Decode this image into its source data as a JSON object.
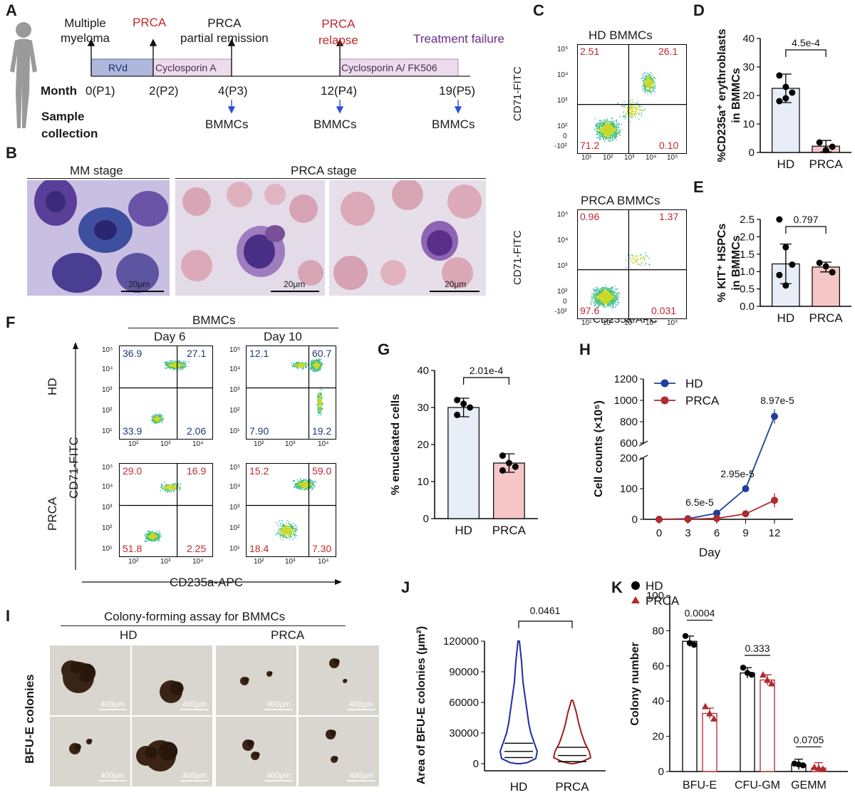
{
  "letters": {
    "A": "A",
    "B": "B",
    "C": "C",
    "D": "D",
    "E": "E",
    "F": "F",
    "G": "G",
    "H": "H",
    "I": "I",
    "J": "J",
    "K": "K"
  },
  "panelA": {
    "events": [
      "Multiple\nmyeloma",
      "PRCA",
      "PRCA\npartial remission",
      "PRCA\nrelapse",
      "Treatment failure"
    ],
    "bars": {
      "rvd": "RVd",
      "csa": "Cyclosporin A",
      "csa_fk": "Cyclosporin A/ FK506"
    },
    "month_label": "Month",
    "months": [
      "0(P1)",
      "2(P2)",
      "4(P3)",
      "12(P4)",
      "19(P5)"
    ],
    "sample_label": "Sample\ncollection",
    "bmmcs": "BMMCs"
  },
  "panelB": {
    "mm_stage": "MM stage",
    "prca_stage": "PRCA stage",
    "scale": "20μm"
  },
  "panelC": {
    "hd_title": "HD BMMCs",
    "prca_title": "PRCA BMMCs",
    "ylabel": "CD71-FITC",
    "xlabel": "CD235a-APC",
    "hd_quadrants": {
      "ul": "2.51",
      "ur": "26.1",
      "ll": "71.2",
      "lr": "0.10"
    },
    "prca_quadrants": {
      "ul": "0.96",
      "ur": "1.37",
      "ll": "97.6",
      "lr": "0.031"
    },
    "y_ticks": [
      "10⁵",
      "10⁴",
      "10³",
      "10²",
      "0",
      "-10²"
    ],
    "x_ticks": [
      "10¹",
      "10²",
      "10³",
      "10⁴",
      "10⁵"
    ]
  },
  "panelF": {
    "title": "BMMCs",
    "day6": "Day 6",
    "day10": "Day 10",
    "row_hd": "HD",
    "row_prca": "PRCA",
    "ylabel": "CD71-FITC",
    "xlabel": "CD235a-APC",
    "hd_d6": {
      "ul": "36.9",
      "ur": "27.1",
      "ll": "33.9",
      "lr": "2.06"
    },
    "hd_d10": {
      "ul": "12.1",
      "ur": "60.7",
      "ll": "7.90",
      "lr": "19.2"
    },
    "prca_d6": {
      "ul": "29.0",
      "ur": "16.9",
      "ll": "51.8",
      "lr": "2.25"
    },
    "prca_d10": {
      "ul": "15.2",
      "ur": "59.0",
      "ll": "18.4",
      "lr": "7.30"
    },
    "y_ticks": [
      "10⁵",
      "10⁴",
      "10³",
      "10²",
      "10¹"
    ],
    "x_ticks": [
      "10²",
      "10³",
      "10⁴"
    ]
  },
  "panelI": {
    "title": "Colony-forming assay for BMMCs",
    "hd": "HD",
    "prca": "PRCA",
    "side": "BFU-E colonies",
    "scale": "400μm"
  },
  "chart_data": [
    {
      "panel": "D",
      "type": "bar",
      "categories": [
        "HD",
        "PRCA"
      ],
      "values": [
        22.5,
        2.2
      ],
      "errors": [
        5,
        2
      ],
      "points": [
        [
          27,
          23,
          21,
          18,
          19
        ],
        [
          3.5,
          0.8,
          2.0
        ]
      ],
      "ylabel": "%CD235a⁺ erythroblasts\nin BMMCs",
      "ylim": [
        0,
        40
      ],
      "yticks": [
        "0",
        "10",
        "20",
        "30",
        "40"
      ],
      "pvalue": "4.5e-4",
      "colors": [
        "#e8eef8",
        "#f6c6c6"
      ]
    },
    {
      "panel": "E",
      "type": "bar",
      "categories": [
        "HD",
        "PRCA"
      ],
      "values": [
        1.22,
        1.13
      ],
      "errors": [
        0.57,
        0.14
      ],
      "points": [
        [
          2.5,
          1.7,
          1.2,
          0.9,
          0.6
        ],
        [
          1.25,
          1.15,
          0.98
        ]
      ],
      "ylabel": "% KIT⁺ HSPCs\nin BMMCs",
      "ylim": [
        0,
        2.5
      ],
      "yticks": [
        "0.0",
        "0.5",
        "1.0",
        "1.5",
        "2.0",
        "2.5"
      ],
      "pvalue": "0.797",
      "colors": [
        "#e8eef8",
        "#f6c6c6"
      ]
    },
    {
      "panel": "G",
      "type": "bar",
      "categories": [
        "HD",
        "PRCA"
      ],
      "values": [
        30,
        15
      ],
      "errors": [
        2.5,
        2.5
      ],
      "points": [
        [
          32,
          31,
          30,
          28
        ],
        [
          17,
          15,
          14,
          13
        ]
      ],
      "ylabel": "% enucleated cells",
      "ylim": [
        0,
        40
      ],
      "yticks": [
        "0",
        "10",
        "20",
        "30",
        "40"
      ],
      "pvalue": "2.01e-4",
      "colors": [
        "#e8eef8",
        "#f6c6c6"
      ]
    },
    {
      "panel": "H",
      "type": "line",
      "x": [
        0,
        3,
        6,
        9,
        12
      ],
      "series": [
        {
          "name": "HD",
          "values": [
            0,
            2,
            20,
            100,
            850
          ],
          "color": "#1f3f99"
        },
        {
          "name": "PRCA",
          "values": [
            0,
            0.5,
            3,
            18,
            62
          ],
          "color": "#b02a2f"
        }
      ],
      "xlabel": "Day",
      "ylabel": "Cell counts (×10⁵)",
      "xticks": [
        "0",
        "3",
        "6",
        "9",
        "12"
      ],
      "yticks_lower": [
        "0",
        "100",
        "200"
      ],
      "yticks_upper": [
        "600",
        "800",
        "1000",
        "1200"
      ],
      "annotations": [
        "6.5e-5",
        "2.95e-5",
        "8.97e-5"
      ]
    },
    {
      "panel": "J",
      "type": "violin",
      "categories": [
        "HD",
        "PRCA"
      ],
      "medians": [
        12000,
        8000
      ],
      "ylabel": "Area of BFU-E colonies (μm²)",
      "ylim": [
        0,
        120000
      ],
      "yticks": [
        "0",
        "30000",
        "60000",
        "90000",
        "120000"
      ],
      "pvalue": "0.0461",
      "colors": [
        "#1f2aa8",
        "#a01c24"
      ]
    },
    {
      "panel": "K",
      "type": "bar",
      "categories": [
        "BFU-E",
        "CFU-GM",
        "GEMM"
      ],
      "series": [
        {
          "name": "HD",
          "values": [
            74,
            56,
            4
          ],
          "points": [
            [
              77,
              73,
              72
            ],
            [
              59,
              56,
              55
            ],
            [
              4.5,
              4,
              3.5
            ]
          ],
          "color": "#000000"
        },
        {
          "name": "PRCA",
          "values": [
            33,
            52,
            2
          ],
          "points": [
            [
              37,
              33,
              30
            ],
            [
              55,
              52,
              50
            ],
            [
              2.5,
              2,
              1.5
            ]
          ],
          "color": "#b02a2f"
        }
      ],
      "ylabel": "Colony number",
      "ylim": [
        0,
        100
      ],
      "yticks": [
        "0",
        "20",
        "40",
        "60",
        "80",
        "100"
      ],
      "pvalues": [
        "0.0004",
        "0.333",
        "0.0705"
      ]
    }
  ]
}
